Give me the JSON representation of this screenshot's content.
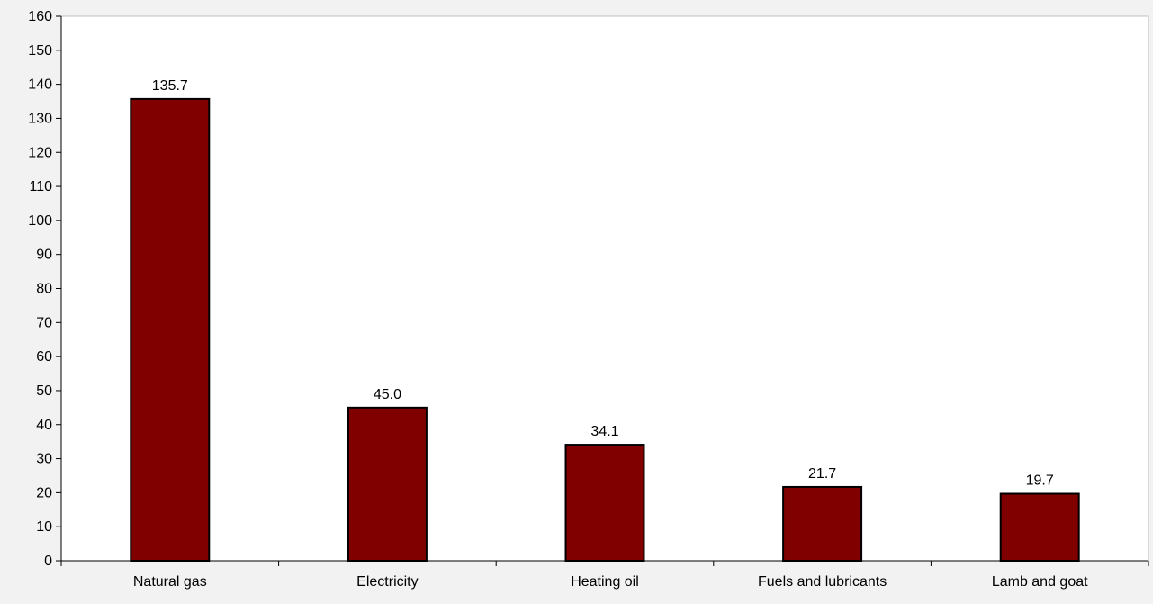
{
  "chart_data": {
    "type": "bar",
    "categories": [
      "Natural gas",
      "Electricity",
      "Heating oil",
      "Fuels and lubricants",
      "Lamb and goat"
    ],
    "values": [
      135.7,
      45.0,
      34.1,
      21.7,
      19.7
    ],
    "data_labels": [
      "135.7",
      "45.0",
      "34.1",
      "21.7",
      "19.7"
    ],
    "title": "",
    "xlabel": "",
    "ylabel": "",
    "ylim": [
      0,
      160
    ],
    "yticks": [
      0,
      10,
      20,
      30,
      40,
      50,
      60,
      70,
      80,
      90,
      100,
      110,
      120,
      130,
      140,
      150,
      160
    ],
    "grid": false,
    "legend": "none",
    "colors": {
      "bar": "#800000",
      "bar_edge": "#000000",
      "plot_background": "#ffffff",
      "page_background": "#f2f2f2"
    }
  }
}
